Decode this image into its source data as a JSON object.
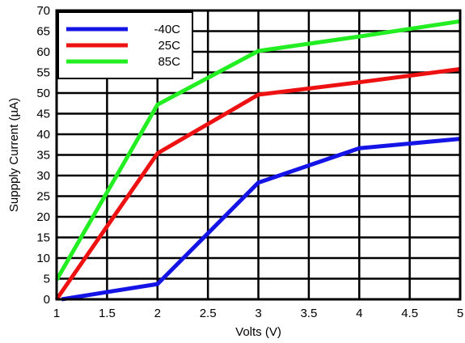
{
  "chart_data": {
    "type": "line",
    "xlabel": "Volts (V)",
    "ylabel": "Suppply Current (µA)",
    "xlim": [
      1,
      5
    ],
    "ylim": [
      0,
      70
    ],
    "x_ticks": [
      1,
      1.5,
      2,
      2.5,
      3,
      3.5,
      4,
      4.5,
      5
    ],
    "x_tick_labels": [
      "1",
      "1.5",
      "2",
      "2.5",
      "3",
      "3.5",
      "4",
      "4.5",
      "5"
    ],
    "y_ticks": [
      0,
      5,
      10,
      15,
      20,
      25,
      30,
      35,
      40,
      45,
      50,
      55,
      60,
      65,
      70
    ],
    "y_tick_labels": [
      "0",
      "5",
      "10",
      "15",
      "20",
      "25",
      "30",
      "35",
      "40",
      "45",
      "50",
      "55",
      "60",
      "65",
      "70"
    ],
    "grid": true,
    "legend_position": "top-left",
    "series": [
      {
        "name": "-40C",
        "color": "#1414e6",
        "x": [
          1.05,
          2,
          3,
          4,
          5
        ],
        "y": [
          0,
          3.7,
          28.3,
          36.6,
          38.9
        ]
      },
      {
        "name": "25C",
        "color": "#ee1111",
        "x": [
          1,
          2,
          3,
          4,
          5
        ],
        "y": [
          0,
          35.4,
          49.6,
          52.6,
          55.8
        ]
      },
      {
        "name": "85C",
        "color": "#22ee22",
        "x": [
          1,
          2,
          3,
          4,
          5
        ],
        "y": [
          4.7,
          47.2,
          60.2,
          63.7,
          67.4
        ]
      }
    ]
  }
}
